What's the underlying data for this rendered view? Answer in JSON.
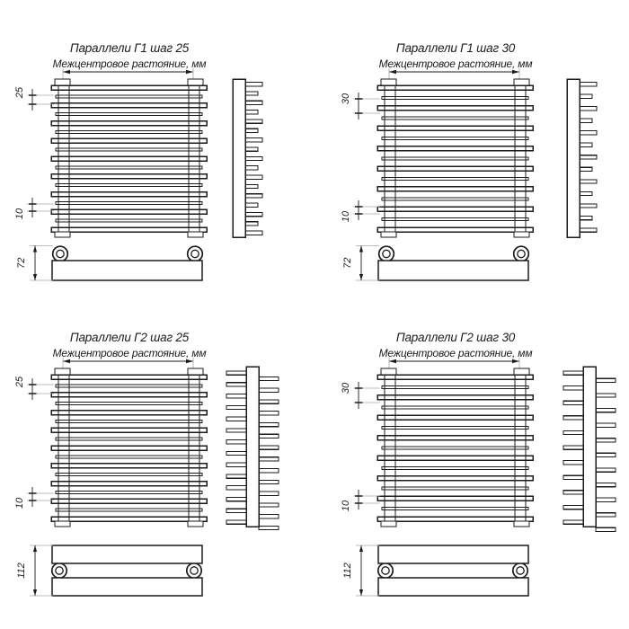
{
  "page": {
    "background_color": "#ffffff",
    "line_color": "#1b1b1b",
    "extension_line_color": "#a9a9a9",
    "description": "Four technical drawings of Paralleli towel-rail radiators: front view, side profile view and bottom view with dimensions"
  },
  "drawings": [
    {
      "id": "g1-step-25",
      "title": "Параллели Г1 шаг 25",
      "subtitle": "Межцентровое растояние, мм",
      "step_value": "25",
      "gap_value": "10",
      "depth_value": "72",
      "variant": "G1",
      "front_tubes_wide": 9,
      "front_tubes_narrow": 8,
      "side_teeth": 17
    },
    {
      "id": "g1-step-30",
      "title": "Параллели Г1 шаг 30",
      "subtitle": "Межцентровое растояние, мм",
      "step_value": "30",
      "gap_value": "10",
      "depth_value": "72",
      "variant": "G1",
      "front_tubes_wide": 8,
      "front_tubes_narrow": 7,
      "side_teeth": 13
    },
    {
      "id": "g2-step-25",
      "title": "Параллели Г2 шаг 25",
      "subtitle": "Межцентровое растояние, мм",
      "step_value": "25",
      "gap_value": "10",
      "depth_value": "112",
      "variant": "G2",
      "front_tubes_wide": 9,
      "front_tubes_narrow": 8,
      "side_teeth": 14
    },
    {
      "id": "g2-step-30",
      "title": "Параллели Г2 шаг 30",
      "subtitle": "Межцентровое растояние, мм",
      "step_value": "30",
      "gap_value": "10",
      "depth_value": "112",
      "variant": "G2",
      "front_tubes_wide": 8,
      "front_tubes_narrow": 7,
      "side_teeth": 11
    }
  ]
}
